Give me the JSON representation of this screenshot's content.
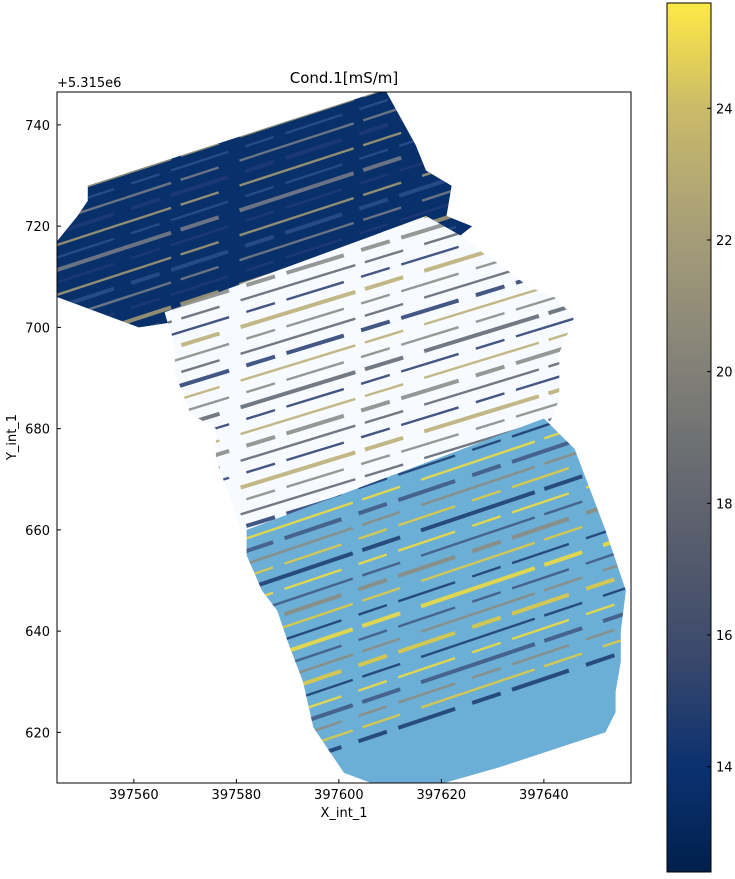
{
  "chart_data": {
    "type": "scatter",
    "title": "Cond.1[mS/m]",
    "xlabel": "X_int_1",
    "ylabel": "Y_int_1",
    "y_offset_label": "+5.315e6",
    "xlim": [
      397545,
      397657
    ],
    "ylim": [
      610,
      746.5
    ],
    "x_ticks": [
      397560,
      397580,
      397600,
      397620,
      397640
    ],
    "x_tick_labels": [
      "397560",
      "397580",
      "397600",
      "397620",
      "397640"
    ],
    "y_ticks": [
      620,
      640,
      660,
      680,
      700,
      720,
      740
    ],
    "y_tick_labels": [
      "620",
      "640",
      "660",
      "680",
      "700",
      "720",
      "740"
    ],
    "colorbar": {
      "colormap": "cividis",
      "range": [
        12.4,
        25.6
      ],
      "ticks": [
        14,
        16,
        18,
        20,
        22,
        24
      ],
      "tick_labels": [
        "14",
        "16",
        "18",
        "20",
        "22",
        "24"
      ]
    },
    "grid": false,
    "legend": "none",
    "bands": [
      {
        "name": "north",
        "fill": "#08306b",
        "polygon": [
          [
            397545,
            717
          ],
          [
            397549,
            722
          ],
          [
            397551,
            725
          ],
          [
            397551,
            728
          ],
          [
            397609,
            747
          ],
          [
            397615,
            736
          ],
          [
            397617,
            731
          ],
          [
            397622,
            728
          ],
          [
            397621,
            722
          ],
          [
            397626,
            720
          ],
          [
            397616,
            712
          ],
          [
            397574,
            702
          ],
          [
            397561,
            700
          ],
          [
            397545,
            706
          ]
        ],
        "track_count": 24,
        "track_slope": 0.33,
        "track_colors": [
          "#1e3a77",
          "#7b7f88",
          "#2c4f8a",
          "#a89e74"
        ]
      },
      {
        "name": "middle",
        "fill": "#f7fbff",
        "polygon": [
          [
            397566,
            703
          ],
          [
            397617,
            722
          ],
          [
            397624,
            718
          ],
          [
            397629,
            714
          ],
          [
            397632,
            712
          ],
          [
            397637,
            708
          ],
          [
            397642,
            706
          ],
          [
            397646,
            702
          ],
          [
            397643,
            695
          ],
          [
            397643,
            686
          ],
          [
            397642,
            683
          ],
          [
            397641,
            681
          ],
          [
            397617,
            674
          ],
          [
            397596,
            665
          ],
          [
            397591,
            660
          ],
          [
            397581,
            660
          ],
          [
            397576,
            674
          ],
          [
            397576,
            680
          ],
          [
            397571,
            683
          ],
          [
            397568,
            691
          ],
          [
            397568,
            696
          ]
        ],
        "track_count": 28,
        "track_slope": 0.31,
        "track_colors": [
          "#243a6e",
          "#5a6270",
          "#858585",
          "#b9ab72"
        ]
      },
      {
        "name": "south",
        "fill": "#6baed6",
        "polygon": [
          [
            397582,
            660
          ],
          [
            397640,
            682
          ],
          [
            397646,
            676
          ],
          [
            397649,
            668
          ],
          [
            397652,
            660
          ],
          [
            397656,
            648
          ],
          [
            397655,
            640
          ],
          [
            397655,
            634
          ],
          [
            397654,
            628
          ],
          [
            397654,
            624
          ],
          [
            397652,
            620
          ],
          [
            397631,
            613
          ],
          [
            397617,
            609
          ],
          [
            397609,
            609
          ],
          [
            397601,
            612
          ],
          [
            397595,
            621
          ],
          [
            397593,
            630
          ],
          [
            397590,
            638
          ],
          [
            397588,
            644
          ],
          [
            397585,
            648
          ],
          [
            397582,
            655
          ]
        ],
        "track_count": 34,
        "track_slope": 0.34,
        "track_colors": [
          "#1b3a70",
          "#e3cb3b",
          "#8d8a7a",
          "#3e5680",
          "#f4dd3a"
        ]
      }
    ]
  }
}
